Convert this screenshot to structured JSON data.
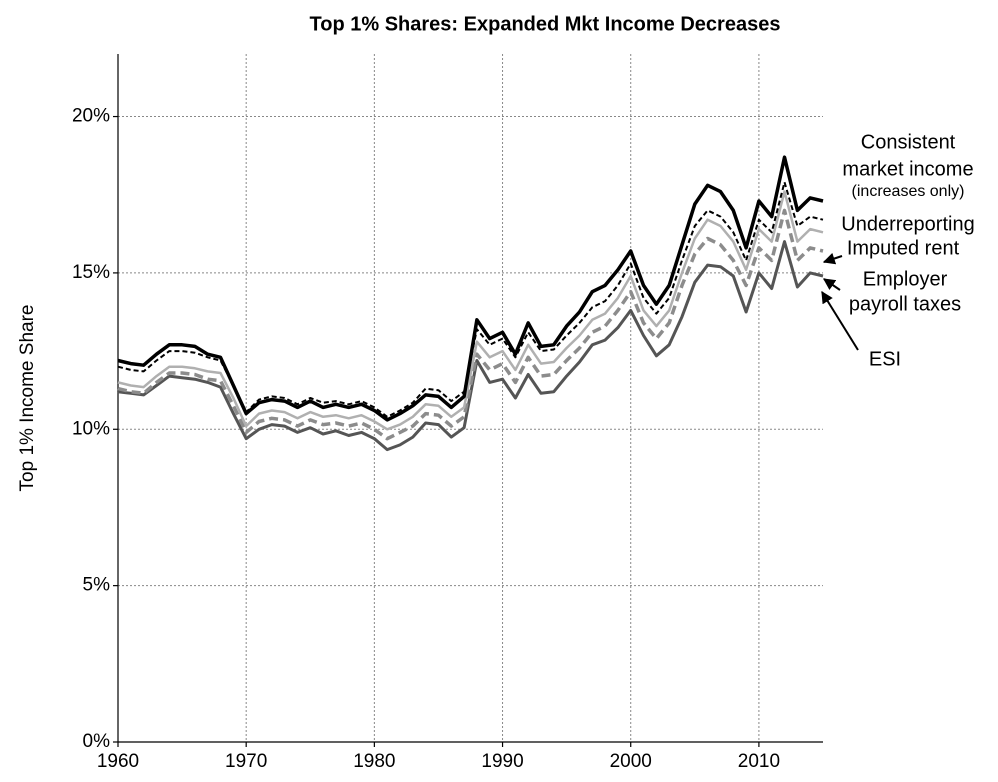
{
  "chart_data": {
    "type": "line",
    "title": "Top 1% Shares: Expanded Mkt Income Decreases",
    "y_label": "Top 1%  Income Share",
    "x": [
      1960,
      1961,
      1962,
      1963,
      1964,
      1965,
      1966,
      1967,
      1968,
      1969,
      1970,
      1971,
      1972,
      1973,
      1974,
      1975,
      1976,
      1977,
      1978,
      1979,
      1980,
      1981,
      1982,
      1983,
      1984,
      1985,
      1986,
      1987,
      1988,
      1989,
      1990,
      1991,
      1992,
      1993,
      1994,
      1995,
      1996,
      1997,
      1998,
      1999,
      2000,
      2001,
      2002,
      2003,
      2004,
      2005,
      2006,
      2007,
      2008,
      2009,
      2010,
      2011,
      2012,
      2013,
      2014,
      2015
    ],
    "xlim": [
      1960,
      2015
    ],
    "xticks": [
      1960,
      1970,
      1980,
      1990,
      2000,
      2010
    ],
    "ylim": [
      0,
      22
    ],
    "yticks": [
      {
        "value": 0,
        "label": "0%"
      },
      {
        "value": 5,
        "label": "5%"
      },
      {
        "value": 10,
        "label": "10%"
      },
      {
        "value": 15,
        "label": "15%"
      },
      {
        "value": 20,
        "label": "20%"
      }
    ],
    "grid": true,
    "series": [
      {
        "name": [
          "Consistent",
          "market income",
          "(increases only)"
        ],
        "color": "#000000",
        "dashed": false,
        "values": [
          12.2,
          12.1,
          12.05,
          12.4,
          12.7,
          12.7,
          12.65,
          12.4,
          12.3,
          11.4,
          10.5,
          10.85,
          10.95,
          10.9,
          10.7,
          10.9,
          10.7,
          10.8,
          10.7,
          10.8,
          10.6,
          10.3,
          10.5,
          10.75,
          11.1,
          11.05,
          10.7,
          11.05,
          13.5,
          12.9,
          13.1,
          12.4,
          13.4,
          12.65,
          12.7,
          13.3,
          13.75,
          14.4,
          14.6,
          15.1,
          15.7,
          14.6,
          14.0,
          14.6,
          15.9,
          17.2,
          17.8,
          17.6,
          17.0,
          15.8,
          17.3,
          16.8,
          18.7,
          17.0,
          17.4,
          17.3
        ]
      },
      {
        "name": [
          "Underreporting"
        ],
        "color": "#000000",
        "dashed": true,
        "values": [
          12.0,
          11.9,
          11.85,
          12.2,
          12.5,
          12.5,
          12.45,
          12.3,
          12.2,
          11.4,
          10.55,
          10.95,
          11.05,
          11.0,
          10.8,
          11.0,
          10.85,
          10.9,
          10.8,
          10.9,
          10.7,
          10.4,
          10.6,
          10.85,
          11.3,
          11.25,
          10.9,
          11.2,
          13.2,
          12.7,
          12.9,
          12.3,
          13.1,
          12.5,
          12.55,
          13.0,
          13.4,
          13.9,
          14.1,
          14.6,
          15.3,
          14.2,
          13.7,
          14.2,
          15.4,
          16.5,
          17.0,
          16.8,
          16.3,
          15.4,
          16.7,
          16.3,
          17.9,
          16.5,
          16.8,
          16.7
        ]
      },
      {
        "name": [
          "Imputed rent"
        ],
        "color": "#b0b0b0",
        "dashed": false,
        "values": [
          11.5,
          11.4,
          11.35,
          11.7,
          12.0,
          12.0,
          11.95,
          11.85,
          11.8,
          11.0,
          10.1,
          10.5,
          10.6,
          10.55,
          10.35,
          10.55,
          10.4,
          10.45,
          10.35,
          10.45,
          10.25,
          10.0,
          10.15,
          10.4,
          10.8,
          10.75,
          10.4,
          10.7,
          12.8,
          12.3,
          12.5,
          11.9,
          12.7,
          12.1,
          12.15,
          12.6,
          13.0,
          13.5,
          13.7,
          14.2,
          14.9,
          13.8,
          13.3,
          13.8,
          15.0,
          16.1,
          16.7,
          16.5,
          16.0,
          15.1,
          16.4,
          16.0,
          17.6,
          16.0,
          16.4,
          16.3
        ]
      },
      {
        "name": [
          "Employer",
          "payroll taxes"
        ],
        "color": "#8c8c8c",
        "dashed": true,
        "values": [
          11.3,
          11.2,
          11.15,
          11.5,
          11.8,
          11.8,
          11.75,
          11.6,
          11.55,
          10.75,
          9.9,
          10.25,
          10.35,
          10.3,
          10.1,
          10.3,
          10.15,
          10.2,
          10.1,
          10.2,
          10.0,
          9.7,
          9.9,
          10.1,
          10.5,
          10.45,
          10.1,
          10.4,
          12.4,
          11.9,
          12.1,
          11.5,
          12.3,
          11.7,
          11.75,
          12.2,
          12.6,
          13.1,
          13.3,
          13.8,
          14.4,
          13.4,
          12.9,
          13.4,
          14.6,
          15.6,
          16.1,
          15.9,
          15.4,
          14.6,
          15.8,
          15.4,
          17.0,
          15.4,
          15.8,
          15.7
        ]
      },
      {
        "name": [
          "ESI"
        ],
        "color": "#555555",
        "dashed": false,
        "values": [
          11.2,
          11.15,
          11.1,
          11.4,
          11.7,
          11.65,
          11.6,
          11.5,
          11.35,
          10.5,
          9.7,
          10.0,
          10.15,
          10.1,
          9.9,
          10.05,
          9.85,
          9.95,
          9.8,
          9.9,
          9.7,
          9.35,
          9.5,
          9.75,
          10.2,
          10.15,
          9.75,
          10.05,
          12.2,
          11.5,
          11.6,
          11.0,
          11.75,
          11.15,
          11.2,
          11.7,
          12.15,
          12.7,
          12.85,
          13.25,
          13.8,
          13.0,
          12.35,
          12.7,
          13.6,
          14.7,
          15.25,
          15.2,
          14.9,
          13.75,
          15.0,
          14.5,
          16.0,
          14.55,
          15.0,
          14.9
        ]
      }
    ]
  }
}
